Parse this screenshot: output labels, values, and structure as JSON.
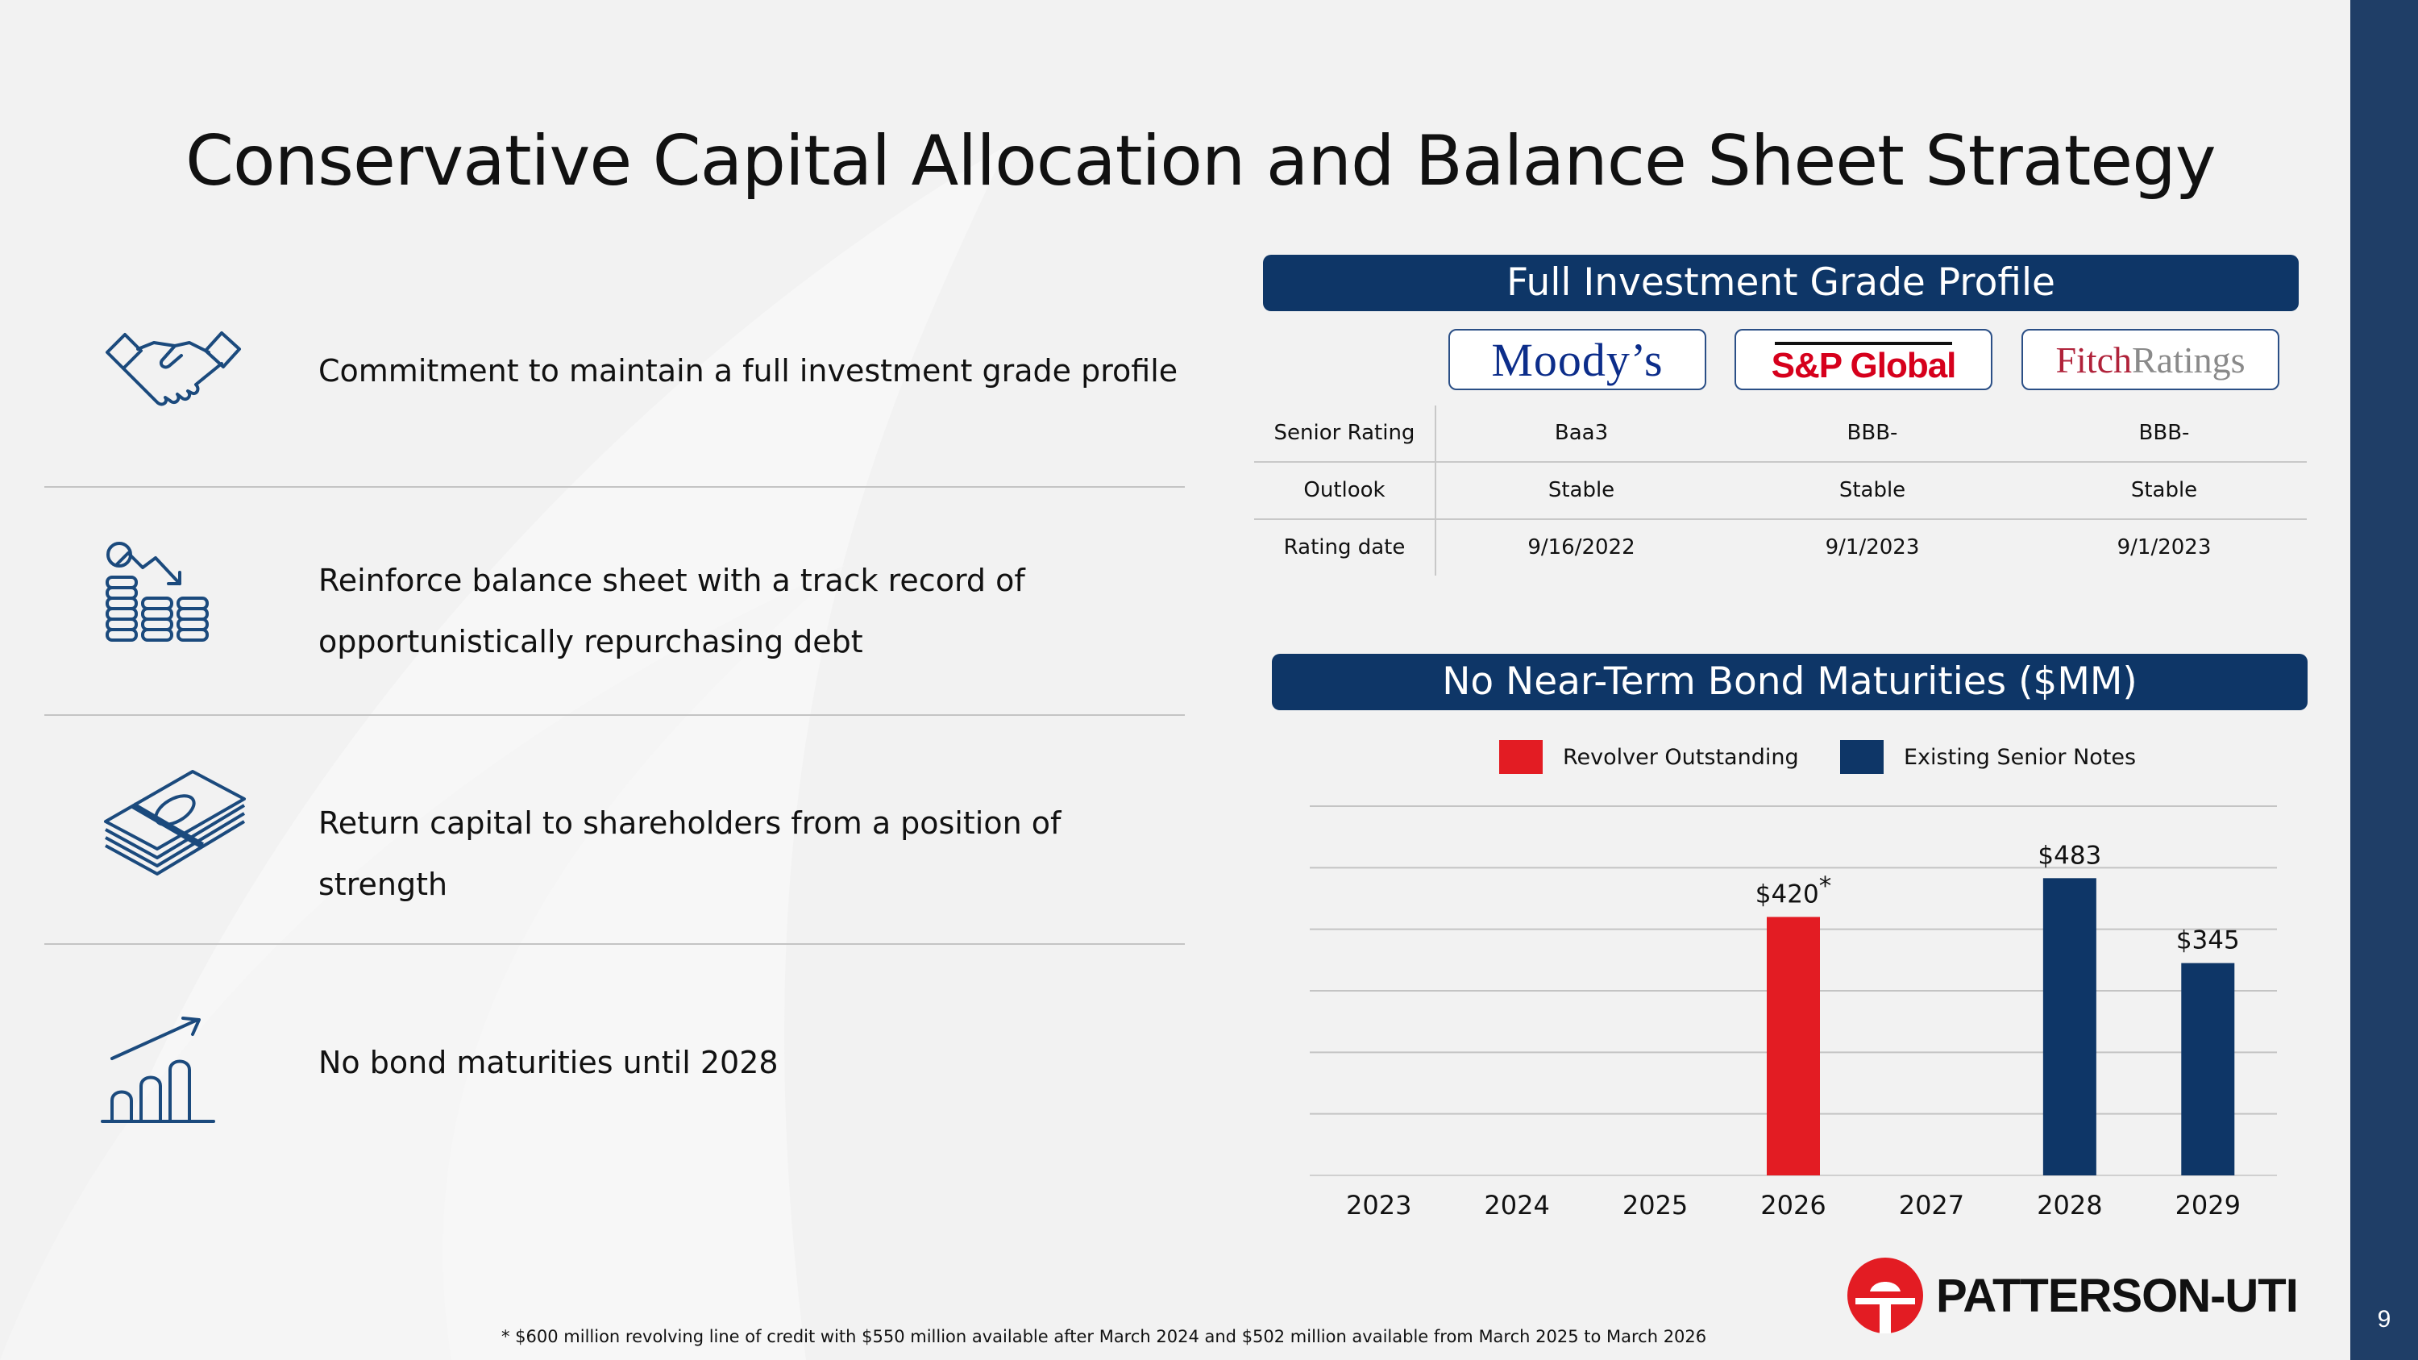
{
  "page": {
    "title": "Conservative Capital Allocation and Balance Sheet Strategy",
    "number": "9"
  },
  "points": [
    {
      "text": "Commitment to maintain a full investment grade profile",
      "icon": "handshake-icon"
    },
    {
      "text_line1": "Reinforce balance sheet with a track record of",
      "text_line2": "opportunistically repurchasing debt",
      "icon": "coins-decline-icon"
    },
    {
      "text": "Return capital to shareholders from a position of strength",
      "icon": "cash-stack-icon"
    },
    {
      "text": "No bond maturities until 2028",
      "icon": "growth-chart-icon"
    }
  ],
  "ratings": {
    "header": "Full Investment Grade Profile",
    "agencies": {
      "moodys": "Moody’s",
      "sp": "S&P Global",
      "fitch_a": "Fitch",
      "fitch_b": "Ratings"
    },
    "rows": [
      {
        "label": "Senior Rating",
        "values": [
          "Baa3",
          "BBB-",
          "BBB-"
        ]
      },
      {
        "label": "Outlook",
        "values": [
          "Stable",
          "Stable",
          "Stable"
        ]
      },
      {
        "label": "Rating date",
        "values": [
          "9/16/2022",
          "9/1/2023",
          "9/1/2023"
        ]
      }
    ]
  },
  "maturities": {
    "header": "No Near-Term Bond Maturities ($MM)"
  },
  "chart_data": {
    "type": "bar",
    "title": "No Near-Term Bond Maturities ($MM)",
    "categories": [
      "2023",
      "2024",
      "2025",
      "2026",
      "2027",
      "2028",
      "2029"
    ],
    "series": [
      {
        "name": "Revolver Outstanding",
        "color": "#e31c23",
        "values": [
          0,
          0,
          0,
          420,
          0,
          0,
          0
        ]
      },
      {
        "name": "Existing Senior Notes",
        "color": "#0e3667",
        "values": [
          0,
          0,
          0,
          0,
          0,
          483,
          345
        ]
      }
    ],
    "data_labels": [
      {
        "category": "2026",
        "text": "$420",
        "suffix": "*"
      },
      {
        "category": "2028",
        "text": "$483"
      },
      {
        "category": "2029",
        "text": "$345"
      }
    ],
    "ylim": [
      0,
      600
    ],
    "grid": true,
    "legend": "top-center"
  },
  "footnote": "* $600 million revolving line of credit with $550 million available after March 2024 and $502 million available from March 2025 to March 2026",
  "brand": {
    "name": "PATTERSON-UTI"
  }
}
